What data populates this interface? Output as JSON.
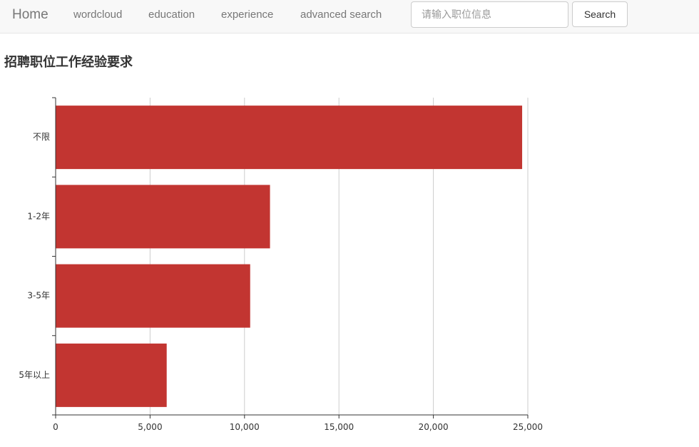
{
  "navbar": {
    "brand": "Home",
    "links": [
      "wordcloud",
      "education",
      "experience",
      "advanced search"
    ],
    "search_placeholder": "请输入职位信息",
    "search_button": "Search"
  },
  "page": {
    "title": "招聘职位工作经验要求"
  },
  "chart_data": {
    "type": "bar",
    "orientation": "horizontal",
    "title": "",
    "xlabel": "",
    "ylabel": "",
    "categories": [
      "不限",
      "1-2年",
      "3-5年",
      "5年以上"
    ],
    "values": [
      24700,
      11350,
      10300,
      5880
    ],
    "xlim": [
      0,
      25000
    ],
    "x_ticks": [
      0,
      5000,
      10000,
      15000,
      20000,
      25000
    ],
    "x_tick_labels": [
      "0",
      "5,000",
      "10,000",
      "15,000",
      "20,000",
      "25,000"
    ],
    "grid": "vertical",
    "bar_color": "#c23531"
  }
}
